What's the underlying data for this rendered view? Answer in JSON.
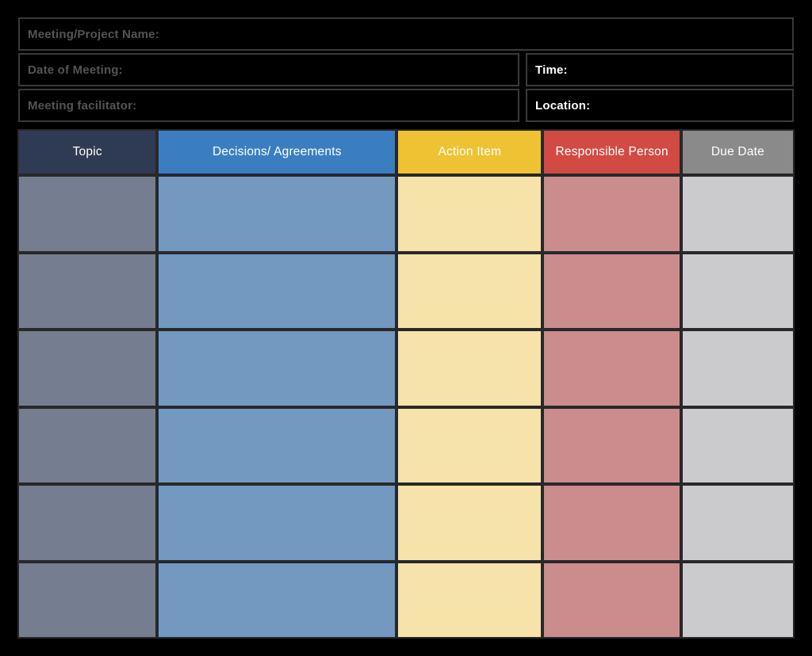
{
  "page": {
    "title": "Meeting Minutes Template"
  },
  "colors": {
    "background": "#000000",
    "info_border": "#3a3a3a",
    "info_label_muted": "#545454",
    "info_label_light": "#ffffff",
    "table_divider": "#27282a",
    "header_text": "#ffffff"
  },
  "info_fields": {
    "meeting_name": {
      "label": "Meeting/Project Name:",
      "value": ""
    },
    "date_of_meeting": {
      "label": "Date of Meeting:",
      "value": ""
    },
    "time": {
      "label": "Time:",
      "value": ""
    },
    "facilitator": {
      "label": "Meeting facilitator:",
      "value": ""
    },
    "location": {
      "label": "Location:",
      "value": ""
    }
  },
  "table": {
    "row_count": 6,
    "columns": [
      {
        "label": "Topic",
        "header_color": "#2f3b52",
        "cell_color": "#747e90"
      },
      {
        "label": "Decisions/ Agreements",
        "header_color": "#3a7ec1",
        "cell_color": "#7399c1"
      },
      {
        "label": "Action Item",
        "header_color": "#eec232",
        "cell_color": "#f5e3a9"
      },
      {
        "label": "Responsible Person",
        "header_color": "#d14b44",
        "cell_color": "#cb8c8e"
      },
      {
        "label": "Due Date",
        "header_color": "#8a8a8a",
        "cell_color": "#cbcbcd"
      }
    ],
    "rows": [
      [
        "",
        "",
        "",
        "",
        ""
      ],
      [
        "",
        "",
        "",
        "",
        ""
      ],
      [
        "",
        "",
        "",
        "",
        ""
      ],
      [
        "",
        "",
        "",
        "",
        ""
      ],
      [
        "",
        "",
        "",
        "",
        ""
      ],
      [
        "",
        "",
        "",
        "",
        ""
      ]
    ]
  }
}
